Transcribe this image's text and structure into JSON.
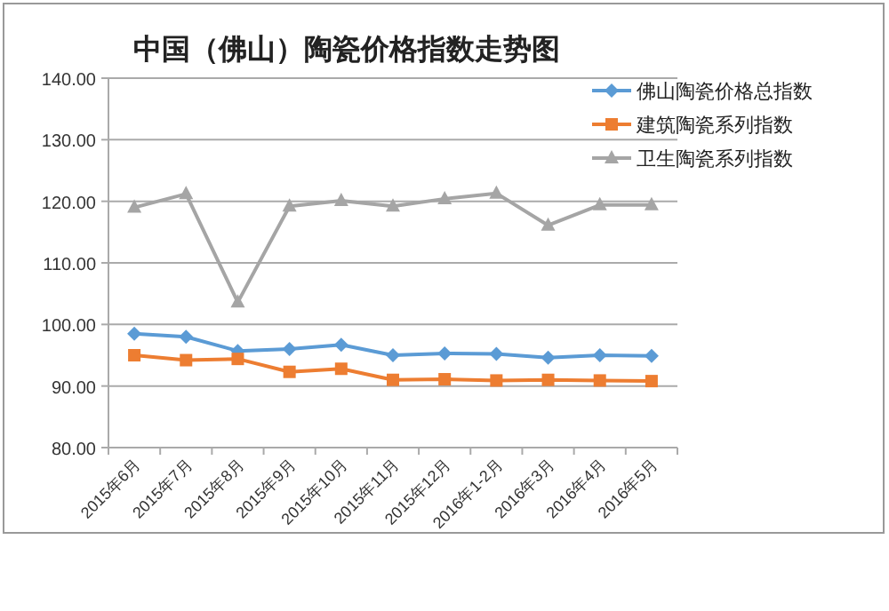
{
  "chart_data": {
    "type": "line",
    "title": "中国（佛山）陶瓷价格指数走势图",
    "categories": [
      "2015年6月",
      "2015年7月",
      "2015年8月",
      "2015年9月",
      "2015年10月",
      "2015年11月",
      "2015年12月",
      "2016年1-2月",
      "2016年3月",
      "2016年4月",
      "2016年5月"
    ],
    "series": [
      {
        "name": "佛山陶瓷价格总指数",
        "color": "#5b9bd5",
        "marker": "diamond",
        "values": [
          98.5,
          98.0,
          95.7,
          96.0,
          96.7,
          95.0,
          95.3,
          95.2,
          94.6,
          95.0,
          94.9
        ]
      },
      {
        "name": "建筑陶瓷系列指数",
        "color": "#ed7d31",
        "marker": "square",
        "values": [
          95.0,
          94.2,
          94.4,
          92.3,
          92.8,
          91.0,
          91.1,
          90.9,
          91.0,
          90.9,
          90.8
        ]
      },
      {
        "name": "卫生陶瓷系列指数",
        "color": "#a5a5a5",
        "marker": "triangle",
        "values": [
          119.0,
          121.2,
          103.6,
          119.2,
          120.1,
          119.2,
          120.4,
          121.3,
          116.1,
          119.4,
          119.4
        ]
      }
    ],
    "ylim": [
      80,
      140
    ],
    "yticks": [
      {
        "value": 80,
        "label": "80.00"
      },
      {
        "value": 90,
        "label": "90.00"
      },
      {
        "value": 100,
        "label": "100.00"
      },
      {
        "value": 110,
        "label": "110.00"
      },
      {
        "value": 120,
        "label": "120.00"
      },
      {
        "value": 130,
        "label": "130.00"
      },
      {
        "value": 140,
        "label": "140.00"
      }
    ],
    "grid": "y",
    "legend": "top right",
    "line_style": "solid"
  }
}
